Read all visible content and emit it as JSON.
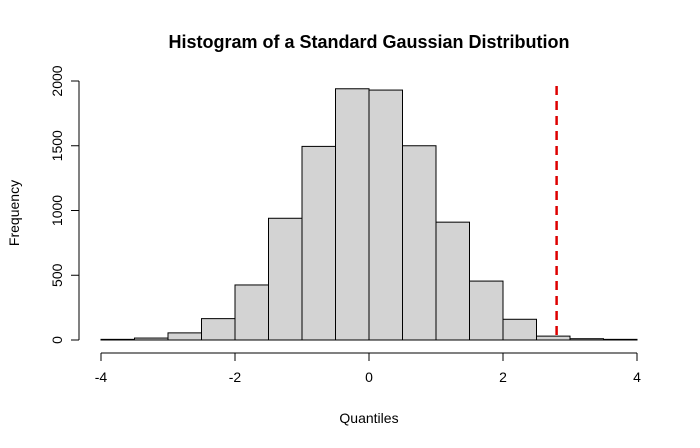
{
  "chart_data": {
    "type": "bar",
    "title": "Histogram of a Standard Gaussian Distribution",
    "xlabel": "Quantiles",
    "ylabel": "Frequency",
    "xlim": [
      -4,
      4
    ],
    "ylim": [
      0,
      2000
    ],
    "x_ticks": [
      -4,
      -2,
      0,
      2,
      4
    ],
    "y_ticks": [
      0,
      500,
      1000,
      1500,
      2000
    ],
    "bin_edges": [
      -4,
      -3.5,
      -3,
      -2.5,
      -2,
      -1.5,
      -1,
      -0.5,
      0,
      0.5,
      1,
      1.5,
      2,
      2.5,
      3,
      3.5,
      4
    ],
    "values": [
      5,
      15,
      55,
      165,
      425,
      940,
      1495,
      1940,
      1930,
      1500,
      910,
      455,
      160,
      30,
      10,
      5
    ],
    "vline": {
      "x": 2.8,
      "style": "dashed",
      "color": "#dd0000"
    },
    "bar_fill": "#d3d3d3",
    "grid": false
  }
}
